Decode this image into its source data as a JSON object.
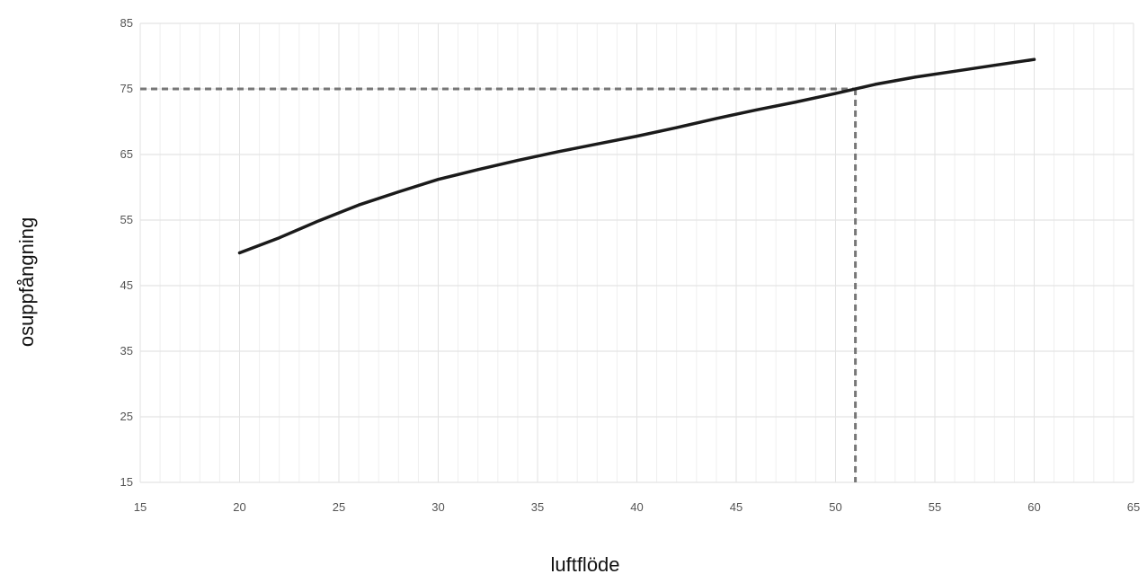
{
  "chart_data": {
    "type": "line",
    "title": "",
    "xlabel": "luftflöde",
    "ylabel": "osuppfångning",
    "xlim": [
      15,
      65
    ],
    "ylim": [
      15,
      85
    ],
    "x_ticks": [
      "15",
      "20",
      "25",
      "30",
      "35",
      "40",
      "45",
      "50",
      "55",
      "60",
      "65"
    ],
    "y_ticks": [
      "15",
      "25",
      "35",
      "45",
      "55",
      "65",
      "75",
      "85"
    ],
    "grid": true,
    "minor_x_grid_step": 1,
    "legend": "none",
    "series": [
      {
        "color": "#1a1a1a",
        "x": [
          20,
          22,
          24,
          26,
          28,
          30,
          32,
          34,
          36,
          38,
          40,
          42,
          44,
          46,
          48,
          50,
          52,
          54,
          56,
          58,
          60
        ],
        "y": [
          50,
          52.3,
          54.9,
          57.3,
          59.3,
          61.2,
          62.7,
          64.1,
          65.4,
          66.6,
          67.8,
          69.1,
          70.5,
          71.8,
          73.0,
          74.3,
          75.7,
          76.8,
          77.7,
          78.6,
          79.5
        ]
      }
    ],
    "reference_lines": {
      "color": "#777777",
      "horizontal_y": 75,
      "vertical_x": 51
    }
  }
}
